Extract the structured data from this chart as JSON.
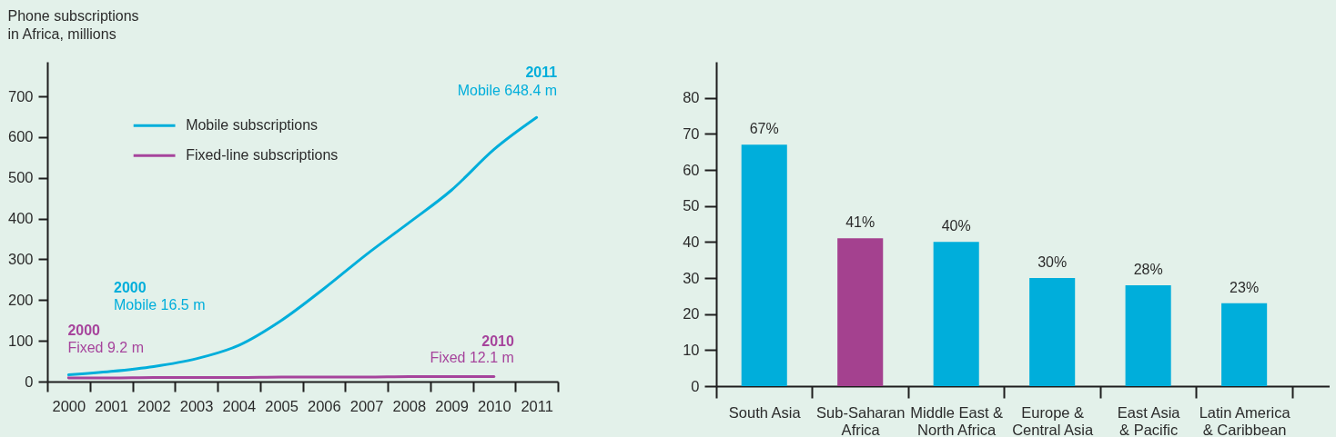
{
  "chart_data": [
    {
      "type": "line",
      "ylabel": "Phone subscriptions in Africa, millions",
      "categories": [
        "2000",
        "2001",
        "2002",
        "2003",
        "2004",
        "2005",
        "2006",
        "2007",
        "2008",
        "2009",
        "2010",
        "2011"
      ],
      "series": [
        {
          "name": "Mobile subscriptions",
          "color": "#00aedb",
          "values": [
            16.5,
            25,
            37,
            56,
            89,
            150,
            228,
            312,
            390,
            470,
            570,
            648.4
          ]
        },
        {
          "name": "Fixed-line subscriptions",
          "color": "#a6449c",
          "values": [
            9.2,
            9,
            10,
            10,
            10,
            11,
            11,
            11,
            12,
            12,
            12.1,
            null
          ]
        }
      ],
      "ylim": [
        0,
        785
      ],
      "yticks": [
        0,
        100,
        200,
        300,
        400,
        500,
        600,
        700
      ],
      "legend": "top left",
      "annotations": [
        {
          "text": "2011 Mobile 648.4 m",
          "x": "2011",
          "y": 648.4
        },
        "2000 Mobile 16.5 m",
        {
          "text": "2000 Fixed 9.2 m",
          "x": "2000",
          "y": 9.2
        },
        {
          "text": "2010 Fixed 12.1 m",
          "x": "2010",
          "y": 12.1
        }
      ]
    },
    {
      "type": "bar",
      "categories": [
        "South Asia",
        "Sub-Saharan Africa",
        "Middle East & North Africa",
        "Europe & Central Asia",
        "East Asia & Pacific",
        "Latin America & Caribbean"
      ],
      "values": [
        67,
        41,
        40,
        30,
        28,
        23
      ],
      "colors": [
        "#00aedb",
        "#a4418f",
        "#00aedb",
        "#00aedb",
        "#00aedb",
        "#00aedb"
      ],
      "value_labels": [
        "67%",
        "41%",
        "40%",
        "30%",
        "28%",
        "23%"
      ],
      "ylim": [
        0,
        90
      ],
      "yticks": [
        0,
        10,
        20,
        30,
        40,
        50,
        60,
        70,
        80
      ]
    }
  ]
}
